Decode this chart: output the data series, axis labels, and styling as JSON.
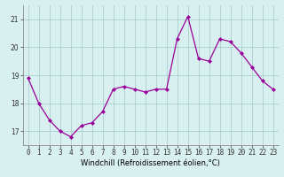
{
  "x": [
    0,
    1,
    2,
    3,
    4,
    5,
    6,
    7,
    8,
    9,
    10,
    11,
    12,
    13,
    14,
    15,
    16,
    17,
    18,
    19,
    20,
    21,
    22,
    23
  ],
  "y": [
    18.9,
    18.0,
    17.4,
    17.0,
    16.8,
    17.2,
    17.3,
    17.7,
    18.5,
    18.6,
    18.5,
    18.4,
    18.5,
    18.5,
    20.3,
    21.1,
    19.6,
    19.5,
    20.3,
    20.2,
    19.8,
    19.3,
    18.8,
    18.5
  ],
  "line_color": "#990099",
  "marker": "D",
  "markersize": 2,
  "linewidth": 0.9,
  "background_color": "#d8f0f0",
  "grid_color": "#aacfcf",
  "xlabel": "Windchill (Refroidissement éolien,°C)",
  "xlabel_fontsize": 6,
  "tick_fontsize": 5.5,
  "ylim": [
    16.5,
    21.5
  ],
  "yticks": [
    17,
    18,
    19,
    20,
    21
  ],
  "xlim": [
    -0.5,
    23.5
  ],
  "xticks": [
    0,
    1,
    2,
    3,
    4,
    5,
    6,
    7,
    8,
    9,
    10,
    11,
    12,
    13,
    14,
    15,
    16,
    17,
    18,
    19,
    20,
    21,
    22,
    23
  ],
  "spine_color": "#888888"
}
